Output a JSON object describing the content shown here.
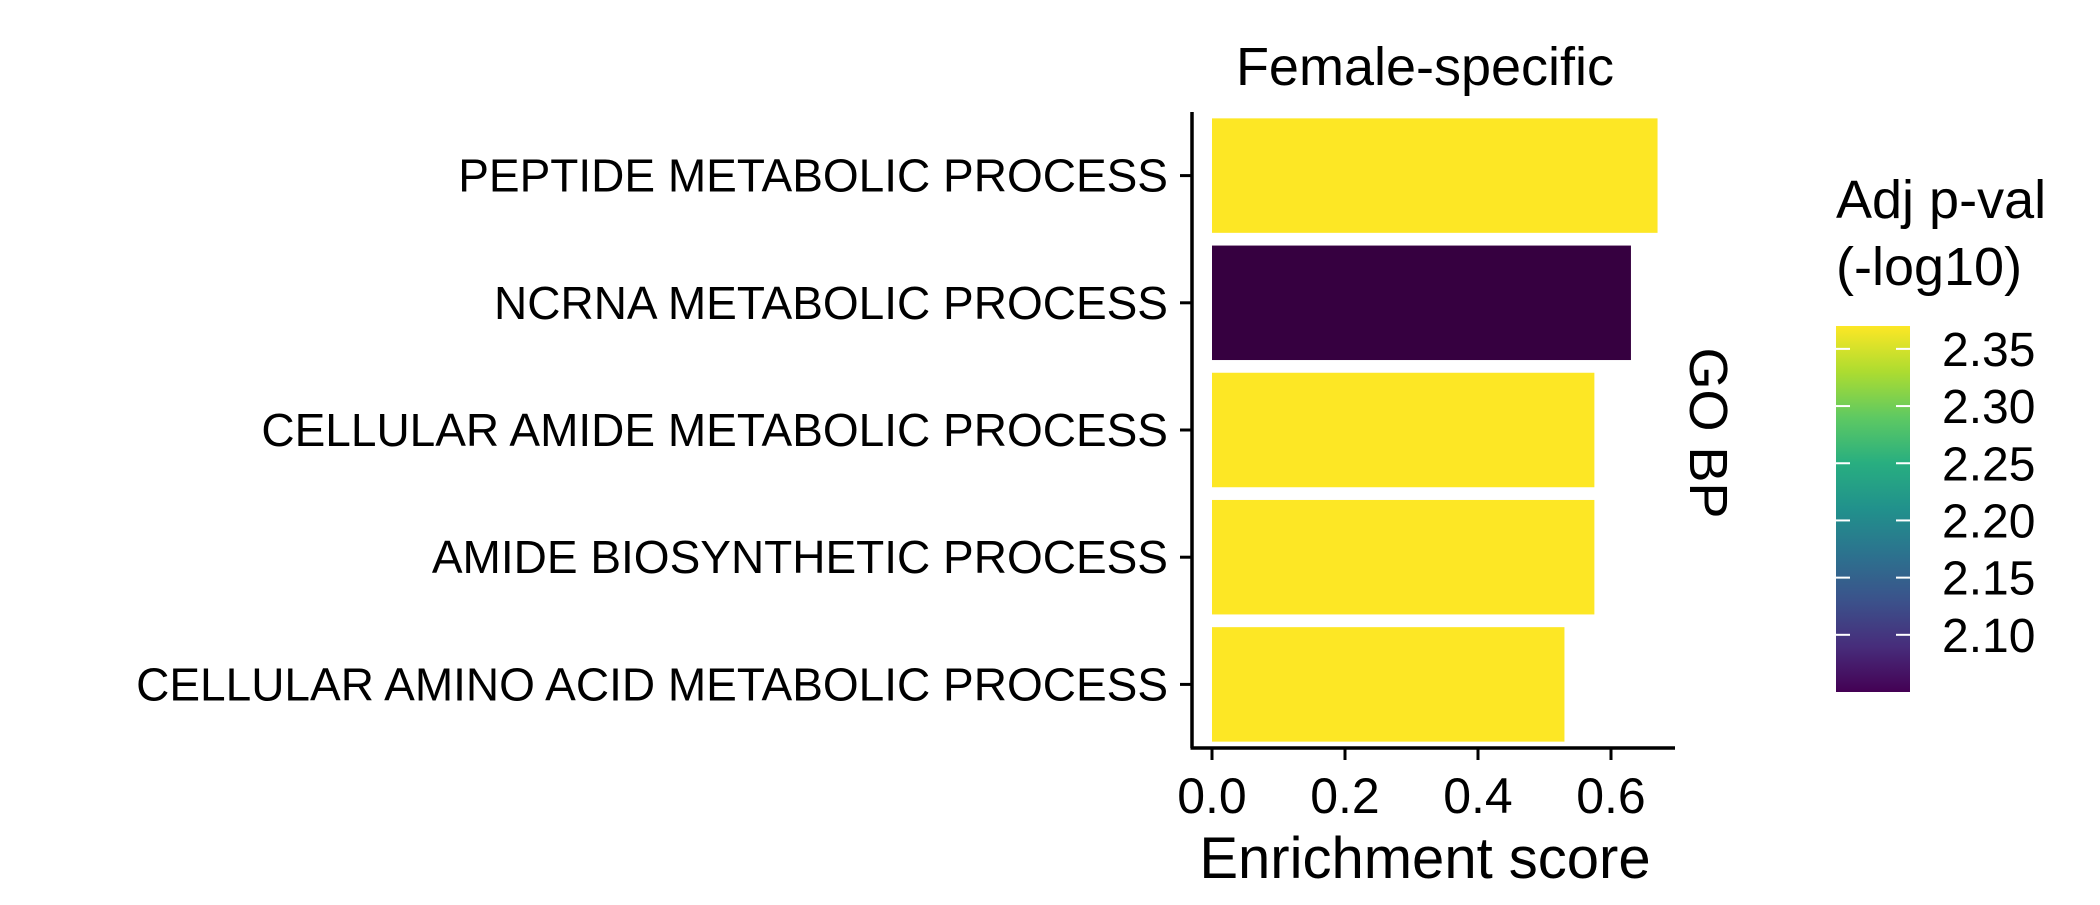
{
  "chart_data": {
    "type": "bar",
    "orientation": "horizontal",
    "title": "Female-specific",
    "facet_label": "GO BP",
    "xlabel": "Enrichment score",
    "ylabel": "",
    "xlim": [
      0,
      0.7
    ],
    "x_ticks": [
      "0.0",
      "0.2",
      "0.4",
      "0.6"
    ],
    "x_tick_values": [
      0.0,
      0.2,
      0.4,
      0.6
    ],
    "categories": [
      "PEPTIDE METABOLIC PROCESS",
      "NCRNA METABOLIC PROCESS",
      "CELLULAR AMIDE METABOLIC PROCESS",
      "AMIDE BIOSYNTHETIC PROCESS",
      "CELLULAR AMINO ACID METABOLIC PROCESS"
    ],
    "values": [
      0.67,
      0.63,
      0.575,
      0.575,
      0.53
    ],
    "color_values": [
      2.37,
      2.06,
      2.37,
      2.37,
      2.37
    ],
    "bar_colors": [
      "#FDE725",
      "#360040",
      "#FDE725",
      "#FDE725",
      "#FDE725"
    ],
    "grid": false,
    "legend": {
      "title_lines": [
        "Adj p-val",
        "(-log10)"
      ],
      "position": "right",
      "type": "colorbar",
      "range": [
        2.05,
        2.37
      ],
      "ticks": [
        "2.35",
        "2.30",
        "2.25",
        "2.20",
        "2.15",
        "2.10"
      ],
      "tick_values": [
        2.35,
        2.3,
        2.25,
        2.2,
        2.15,
        2.1
      ],
      "palette": "viridis"
    }
  }
}
